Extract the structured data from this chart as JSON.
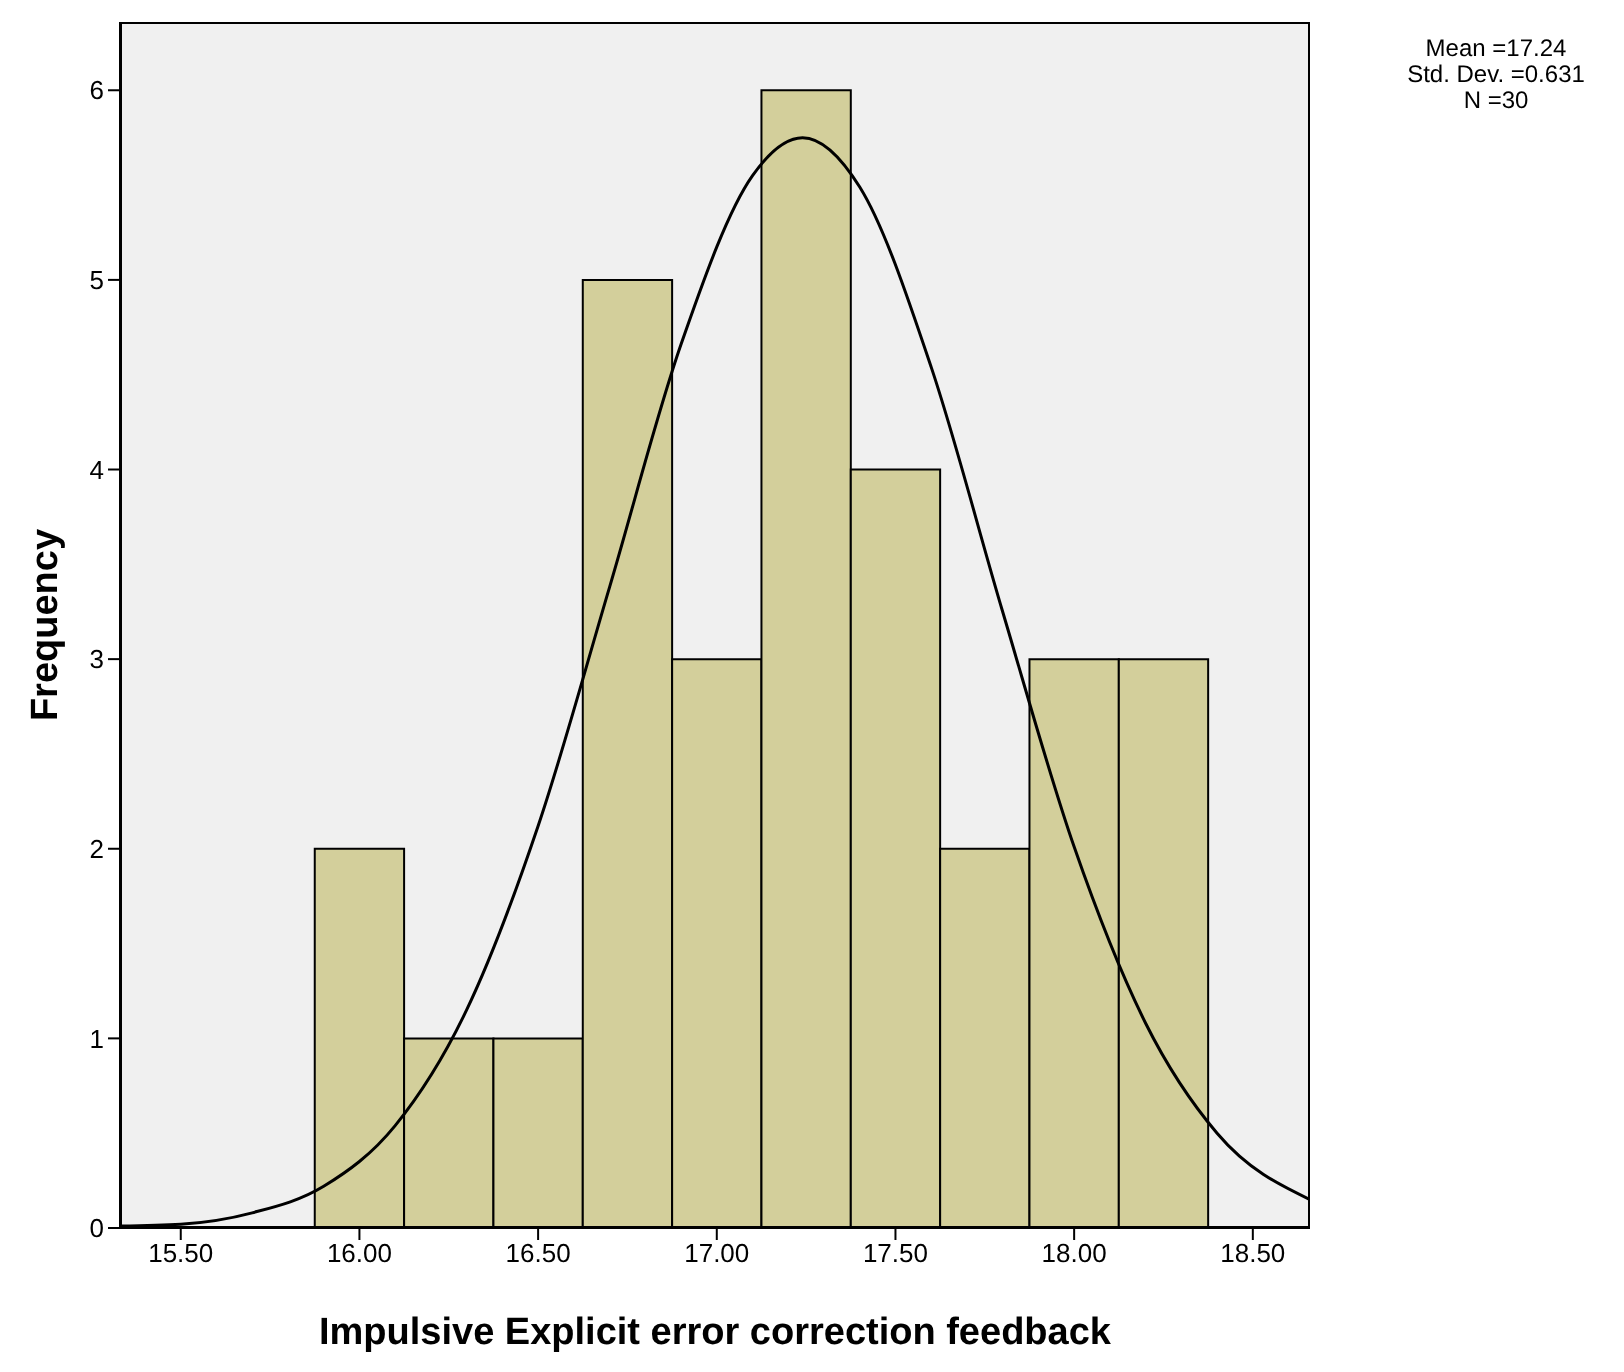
{
  "chart_data": {
    "type": "histogram",
    "xlabel": "Impulsive Explicit error correction feedback",
    "ylabel": "Frequency",
    "bins": [
      15.875,
      16.125,
      16.375,
      16.625,
      16.875,
      17.125,
      17.375,
      17.625,
      17.875,
      18.125,
      18.375
    ],
    "values": [
      2,
      1,
      1,
      5,
      3,
      6,
      4,
      2,
      3,
      3
    ],
    "color": "#d3cf9b",
    "series": [
      {
        "type": "line",
        "color": "#000000",
        "x": [
          15.33,
          15.5,
          15.7,
          15.9,
          16.1,
          16.3,
          16.5,
          16.7,
          16.9,
          17.1,
          17.24,
          17.4,
          17.6,
          17.8,
          18.0,
          18.2,
          18.4,
          18.66
        ],
        "values": [
          0.01,
          0.02,
          0.08,
          0.22,
          0.54,
          1.15,
          2.12,
          3.38,
          4.66,
          5.55,
          5.75,
          5.49,
          4.54,
          3.25,
          2.01,
          1.08,
          0.5,
          0.15
        ]
      }
    ],
    "xlim": [
      15.33,
      18.66
    ],
    "xticks": [
      {
        "value": 15.5,
        "label": "15.50"
      },
      {
        "value": 16,
        "label": "16.00"
      },
      {
        "value": 16.5,
        "label": "16.50"
      },
      {
        "value": 17,
        "label": "17.00"
      },
      {
        "value": 17.5,
        "label": "17.50"
      },
      {
        "value": 18,
        "label": "18.00"
      },
      {
        "value": 18.5,
        "label": "18.50"
      }
    ],
    "ylim": [
      0,
      6.36
    ],
    "yticks": [
      0,
      1,
      2,
      3,
      4,
      5,
      6
    ],
    "annotations": [
      "Mean =17.24",
      "Std. Dev. =0.631",
      "N =30"
    ],
    "grid": false
  }
}
